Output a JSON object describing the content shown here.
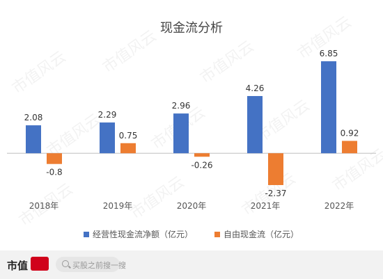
{
  "chart_data": {
    "type": "bar",
    "title": "现金流分析",
    "categories": [
      "2018年",
      "2019年",
      "2020年",
      "2021年",
      "2022年"
    ],
    "series": [
      {
        "name": "经营性现金流净额（亿元）",
        "color": "#4472c4",
        "values": [
          2.08,
          2.29,
          2.96,
          4.26,
          6.85
        ]
      },
      {
        "name": "自由现金流（亿元）",
        "color": "#ed7d31",
        "values": [
          -0.8,
          0.75,
          -0.26,
          -2.37,
          0.92
        ]
      }
    ],
    "value_labels": [
      [
        "2.08",
        "2.29",
        "2.96",
        "4.26",
        "6.85"
      ],
      [
        "-0.8",
        "0.75",
        "-0.26",
        "-2.37",
        "0.92"
      ]
    ],
    "ylim": [
      -3.2,
      8.2
    ],
    "grid": false,
    "legend_position": "bottom"
  },
  "watermark": "市值风云",
  "footer": {
    "brand": "市值",
    "search_placeholder": "买股之前搜一搜",
    "brand_color": "#d0021b"
  }
}
